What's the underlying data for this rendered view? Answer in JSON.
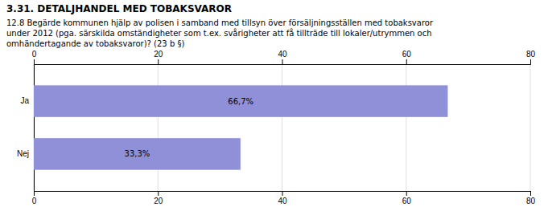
{
  "chart_data": {
    "type": "bar",
    "orientation": "horizontal",
    "title": "3.31. DETALJHANDEL MED TOBAKSVAROR",
    "annotations": [
      "12.8 Begärde kommunen hjälp av polisen i samband med tillsyn över försäljningsställen med tobaksvaror",
      "under 2012 (pga. särskilda omständigheter som t.ex. svårigheter att få tillträde till lokaler/utrymmen och",
      "omhändertagande av tobaksvaror)? (23 b §)"
    ],
    "categories": [
      "Ja",
      "Nej"
    ],
    "values": [
      66.7,
      33.3
    ],
    "value_labels": [
      "66,7%",
      "33,3%"
    ],
    "data_labels": true,
    "color": "#9090d8",
    "xlim": [
      0,
      80
    ],
    "xticks": [
      0,
      20,
      40,
      60,
      80
    ],
    "grid": true
  }
}
